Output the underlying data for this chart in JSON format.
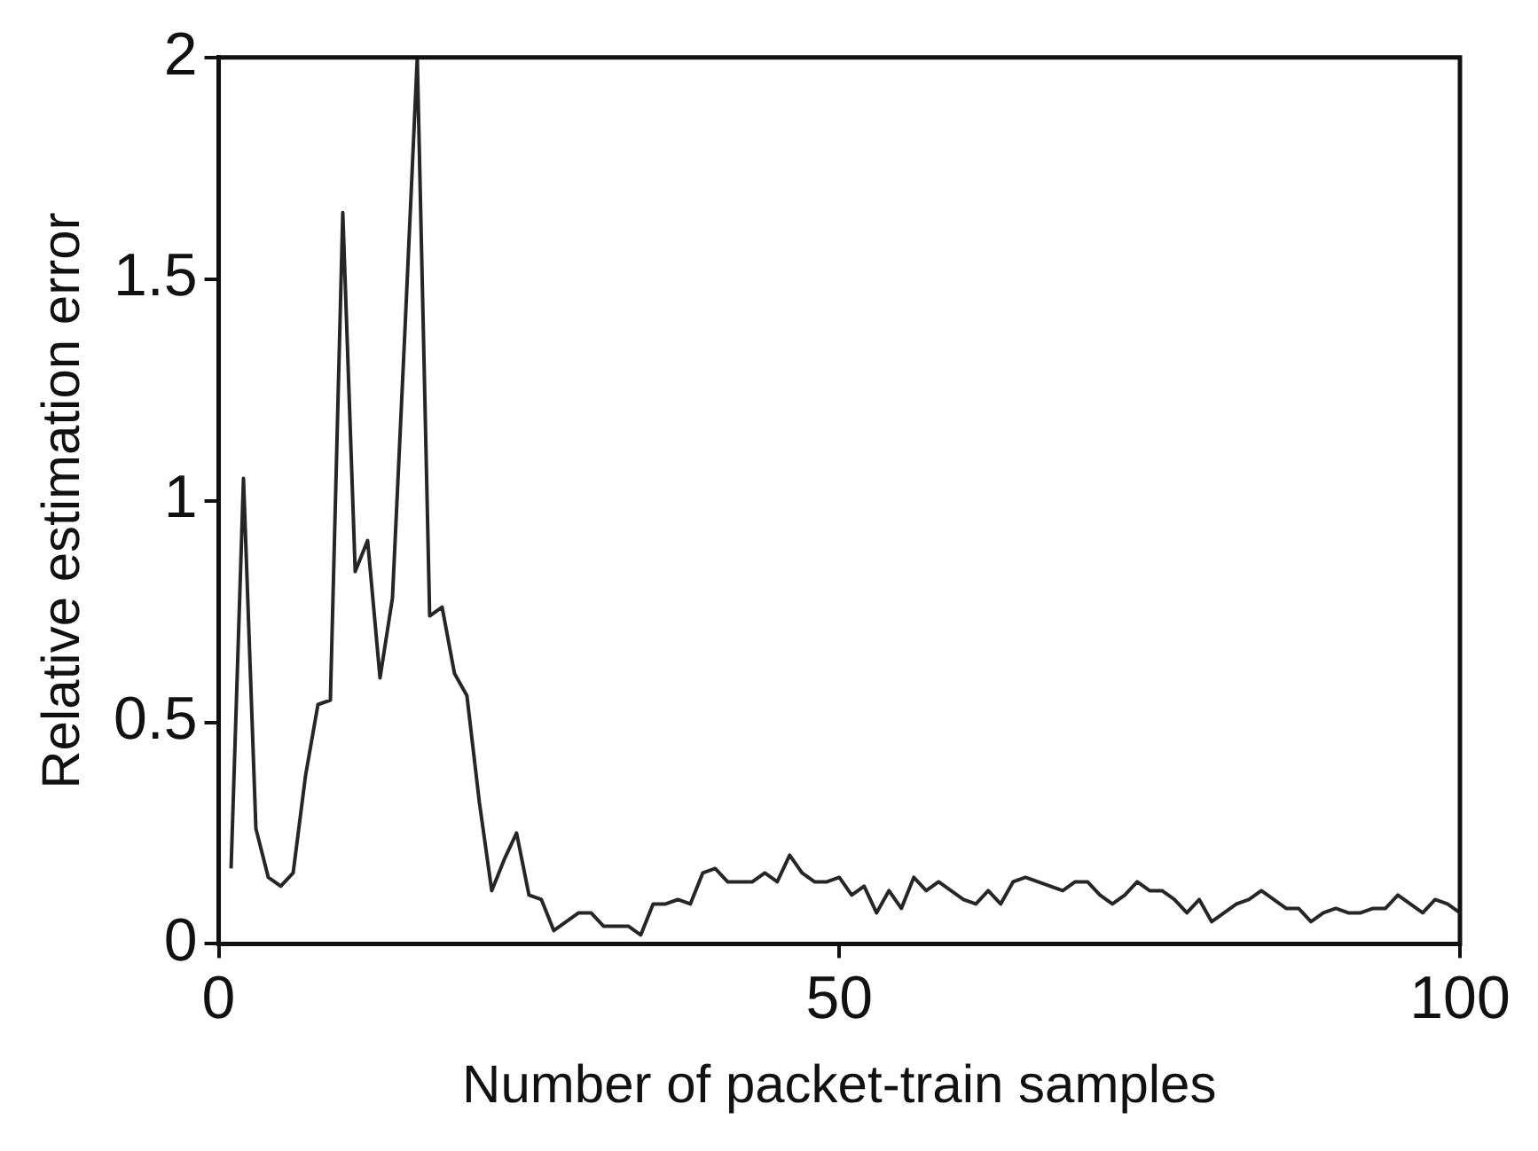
{
  "chart_data": {
    "type": "line",
    "xlabel": "Number of packet-train samples",
    "ylabel": "Relative estimation error",
    "xlim": [
      0,
      100
    ],
    "xticks": [
      0,
      50,
      100
    ],
    "ylim": [
      0,
      2
    ],
    "yticks": [
      0,
      0.5,
      1,
      1.5,
      2
    ],
    "grid": false,
    "legend": false,
    "marker": "none",
    "line_style": "solid",
    "series": [
      {
        "color": "#262626",
        "x": [
          1,
          2,
          3,
          4,
          5,
          6,
          7,
          8,
          9,
          10,
          11,
          12,
          13,
          14,
          15,
          16,
          17,
          18,
          19,
          20,
          21,
          22,
          23,
          24,
          25,
          26,
          27,
          28,
          29,
          30,
          31,
          32,
          33,
          34,
          35,
          36,
          37,
          38,
          39,
          40,
          41,
          42,
          43,
          44,
          45,
          46,
          47,
          48,
          49,
          50,
          51,
          52,
          53,
          54,
          55,
          56,
          57,
          58,
          59,
          60,
          61,
          62,
          63,
          64,
          65,
          66,
          67,
          68,
          69,
          70,
          71,
          72,
          73,
          74,
          75,
          76,
          77,
          78,
          79,
          80,
          81,
          82,
          83,
          84,
          85,
          86,
          87,
          88,
          89,
          90,
          91,
          92,
          93,
          94,
          95,
          96,
          97,
          98,
          99,
          100
        ],
        "values": [
          0.17,
          1.05,
          0.26,
          0.15,
          0.13,
          0.16,
          0.38,
          0.54,
          0.55,
          1.65,
          0.84,
          0.91,
          0.6,
          0.78,
          1.38,
          2.0,
          0.74,
          0.76,
          0.61,
          0.56,
          0.32,
          0.12,
          0.19,
          0.25,
          0.11,
          0.1,
          0.03,
          0.05,
          0.07,
          0.07,
          0.04,
          0.04,
          0.04,
          0.02,
          0.09,
          0.09,
          0.1,
          0.09,
          0.16,
          0.17,
          0.14,
          0.14,
          0.14,
          0.16,
          0.14,
          0.2,
          0.16,
          0.14,
          0.14,
          0.15,
          0.11,
          0.13,
          0.07,
          0.12,
          0.08,
          0.15,
          0.12,
          0.14,
          0.12,
          0.1,
          0.09,
          0.12,
          0.09,
          0.14,
          0.15,
          0.14,
          0.13,
          0.12,
          0.14,
          0.14,
          0.11,
          0.09,
          0.11,
          0.14,
          0.12,
          0.12,
          0.1,
          0.07,
          0.1,
          0.05,
          0.07,
          0.09,
          0.1,
          0.12,
          0.1,
          0.08,
          0.08,
          0.05,
          0.07,
          0.08,
          0.07,
          0.07,
          0.08,
          0.08,
          0.11,
          0.09,
          0.07,
          0.1,
          0.09,
          0.07
        ]
      }
    ]
  }
}
